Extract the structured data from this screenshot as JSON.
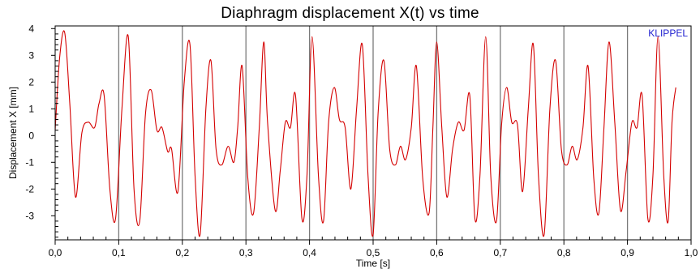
{
  "chart_data": {
    "type": "line",
    "title": "Diaphragm displacement X(t) vs time",
    "xlabel": "Time  [s]",
    "ylabel": "Displacement  X  [mm]",
    "watermark": "KLIPPEL",
    "xlim": [
      0.0,
      1.0
    ],
    "ylim": [
      -3.9,
      4.1
    ],
    "x_ticks": [
      0.0,
      0.1,
      0.2,
      0.3,
      0.4,
      0.5,
      0.6,
      0.7,
      0.8,
      0.9,
      1.0
    ],
    "x_tick_labels": [
      "0,0",
      "0,1",
      "0,2",
      "0,3",
      "0,4",
      "0,5",
      "0,6",
      "0,7",
      "0,8",
      "0,9",
      "1,0"
    ],
    "y_ticks": [
      -3,
      -2,
      -1,
      0,
      1,
      2,
      3,
      4
    ],
    "y_tick_labels": [
      "-3",
      "-2",
      "-1",
      "0",
      "1",
      "2",
      "3",
      "4"
    ],
    "grid": "vertical at major x ticks",
    "legend": "none",
    "line_color": "#d40000",
    "grid_color": "#7a7a7a",
    "watermark_color": "#1f1fd0",
    "series": [
      {
        "name": "",
        "x": [
          0.0,
          0.007,
          0.015,
          0.023,
          0.032,
          0.042,
          0.052,
          0.062,
          0.069,
          0.077,
          0.086,
          0.095,
          0.105,
          0.115,
          0.124,
          0.133,
          0.142,
          0.151,
          0.16,
          0.168,
          0.177,
          0.183,
          0.193,
          0.203,
          0.212,
          0.22,
          0.228,
          0.237,
          0.245,
          0.253,
          0.262,
          0.272,
          0.281,
          0.287,
          0.294,
          0.303,
          0.312,
          0.321,
          0.328,
          0.334,
          0.346,
          0.354,
          0.362,
          0.37,
          0.378,
          0.388,
          0.396,
          0.404,
          0.414,
          0.422,
          0.43,
          0.439,
          0.447,
          0.456,
          0.465,
          0.474,
          0.483,
          0.492,
          0.5,
          0.508,
          0.517,
          0.526,
          0.535,
          0.543,
          0.551,
          0.56,
          0.568,
          0.578,
          0.588,
          0.594,
          0.6,
          0.608,
          0.616,
          0.625,
          0.634,
          0.643,
          0.652,
          0.66,
          0.668,
          0.677,
          0.685,
          0.694,
          0.702,
          0.71,
          0.718,
          0.727,
          0.735,
          0.744,
          0.752,
          0.76,
          0.769,
          0.778,
          0.787,
          0.796,
          0.805,
          0.813,
          0.821,
          0.83,
          0.838,
          0.847,
          0.855,
          0.863,
          0.871,
          0.88,
          0.889,
          0.898,
          0.907,
          0.915,
          0.923,
          0.932,
          0.94,
          0.948,
          0.957,
          0.964,
          0.97,
          0.976
        ],
        "y": [
          0.2,
          2.9,
          3.85,
          1.2,
          -2.3,
          0.1,
          0.5,
          0.3,
          1.2,
          1.5,
          -2.0,
          -3.1,
          1.0,
          3.7,
          -2.0,
          -3.2,
          0.8,
          1.7,
          0.2,
          0.3,
          -0.6,
          -0.5,
          -2.1,
          2.0,
          3.4,
          -1.5,
          -3.7,
          1.0,
          2.8,
          -0.5,
          -1.1,
          -0.4,
          -1.0,
          0.3,
          2.6,
          -1.6,
          -2.9,
          0.3,
          3.5,
          0.5,
          -2.8,
          -1.3,
          0.5,
          0.3,
          1.5,
          -3.1,
          -1.5,
          3.7,
          -1.5,
          -3.2,
          0.5,
          1.8,
          0.6,
          0.3,
          -2.0,
          1.0,
          3.4,
          -1.5,
          -3.7,
          0.9,
          2.8,
          -0.5,
          -1.1,
          -0.4,
          -0.9,
          0.3,
          2.6,
          -1.6,
          -2.9,
          0.3,
          3.5,
          0.3,
          -2.3,
          -0.5,
          0.5,
          0.2,
          1.5,
          -3.1,
          -1.5,
          3.7,
          -1.5,
          -3.2,
          0.4,
          1.8,
          0.5,
          0.4,
          -2.1,
          1.0,
          3.4,
          -1.5,
          -3.7,
          1.0,
          2.8,
          -0.5,
          -1.1,
          -0.4,
          -0.9,
          0.3,
          2.6,
          -1.6,
          -2.9,
          0.3,
          3.5,
          0.5,
          -2.8,
          -1.3,
          0.5,
          0.3,
          1.5,
          -3.1,
          -1.5,
          3.7,
          -1.5,
          -3.2,
          0.5,
          1.8
        ]
      }
    ]
  }
}
